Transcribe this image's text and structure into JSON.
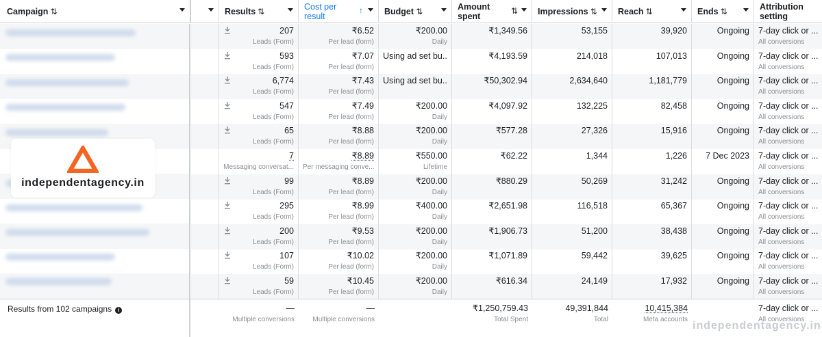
{
  "colors": {
    "accent": "#1877f2",
    "logo": "#f26522",
    "muted": "#8a8d91",
    "row_alt": "#f5f6f7"
  },
  "header": {
    "campaign": "Campaign",
    "results": "Results",
    "cost_per_result": "Cost per\nresult",
    "budget": "Budget",
    "amount_spent": "Amount\nspent",
    "impressions": "Impressions",
    "reach": "Reach",
    "ends": "Ends",
    "attribution": "Attribution\nsetting",
    "sort_icon": "⇅",
    "sort_up_icon": "↑"
  },
  "logo": {
    "text": "independentagency.in"
  },
  "rows": [
    {
      "results": "207",
      "results_sub": "Leads (Form)",
      "cpr": "₹6.52",
      "cpr_sub": "Per lead (form)",
      "budget": "₹200.00",
      "budget_sub": "Daily",
      "spent": "₹1,349.56",
      "impr": "53,155",
      "reach": "39,920",
      "ends": "Ongoing",
      "attr": "7-day click or ...",
      "attr_sub": "All conversions"
    },
    {
      "results": "593",
      "results_sub": "Leads (Form)",
      "cpr": "₹7.07",
      "cpr_sub": "Per lead (form)",
      "budget": "Using ad set bu...",
      "budget_sub": "",
      "spent": "₹4,193.59",
      "impr": "214,018",
      "reach": "107,013",
      "ends": "Ongoing",
      "attr": "7-day click or ...",
      "attr_sub": "All conversions"
    },
    {
      "results": "6,774",
      "results_sub": "Leads (Form)",
      "cpr": "₹7.43",
      "cpr_sub": "Per lead (form)",
      "budget": "Using ad set bu...",
      "budget_sub": "",
      "spent": "₹50,302.94",
      "impr": "2,634,640",
      "reach": "1,181,779",
      "ends": "Ongoing",
      "attr": "7-day click or ...",
      "attr_sub": "All conversions"
    },
    {
      "results": "547",
      "results_sub": "Leads (Form)",
      "cpr": "₹7.49",
      "cpr_sub": "Per lead (form)",
      "budget": "₹200.00",
      "budget_sub": "Daily",
      "spent": "₹4,097.92",
      "impr": "132,225",
      "reach": "82,458",
      "ends": "Ongoing",
      "attr": "7-day click or ...",
      "attr_sub": "All conversions"
    },
    {
      "results": "65",
      "results_sub": "Leads (Form)",
      "cpr": "₹8.88",
      "cpr_sub": "Per lead (form)",
      "budget": "₹200.00",
      "budget_sub": "Daily",
      "spent": "₹577.28",
      "impr": "27,326",
      "reach": "15,916",
      "ends": "Ongoing",
      "attr": "7-day click or ...",
      "attr_sub": "All conversions"
    },
    {
      "results": "7",
      "results_sub": "Messaging conversat...",
      "cpr": "₹8.89",
      "cpr_sub": "Per messaging conve...",
      "budget": "₹550.00",
      "budget_sub": "Lifetime",
      "spent": "₹62.22",
      "impr": "1,344",
      "reach": "1,226",
      "ends": "7 Dec 2023",
      "attr": "7-day click or ...",
      "attr_sub": "All conversions"
    },
    {
      "results": "99",
      "results_sub": "Leads (Form)",
      "cpr": "₹8.89",
      "cpr_sub": "Per lead (form)",
      "budget": "₹200.00",
      "budget_sub": "Daily",
      "spent": "₹880.29",
      "impr": "50,269",
      "reach": "31,242",
      "ends": "Ongoing",
      "attr": "7-day click or ...",
      "attr_sub": "All conversions"
    },
    {
      "results": "295",
      "results_sub": "Leads (Form)",
      "cpr": "₹8.99",
      "cpr_sub": "Per lead (form)",
      "budget": "₹400.00",
      "budget_sub": "Daily",
      "spent": "₹2,651.98",
      "impr": "116,518",
      "reach": "65,367",
      "ends": "Ongoing",
      "attr": "7-day click or ...",
      "attr_sub": "All conversions"
    },
    {
      "results": "200",
      "results_sub": "Leads (Form)",
      "cpr": "₹9.53",
      "cpr_sub": "Per lead (form)",
      "budget": "₹200.00",
      "budget_sub": "Daily",
      "spent": "₹1,906.73",
      "impr": "51,200",
      "reach": "38,438",
      "ends": "Ongoing",
      "attr": "7-day click or ...",
      "attr_sub": "All conversions"
    },
    {
      "results": "107",
      "results_sub": "Leads (Form)",
      "cpr": "₹10.02",
      "cpr_sub": "Per lead (form)",
      "budget": "₹200.00",
      "budget_sub": "Daily",
      "spent": "₹1,071.89",
      "impr": "59,442",
      "reach": "39,625",
      "ends": "Ongoing",
      "attr": "7-day click or ...",
      "attr_sub": "All conversions"
    },
    {
      "results": "59",
      "results_sub": "Leads (Form)",
      "cpr": "₹10.45",
      "cpr_sub": "Per lead (form)",
      "budget": "₹200.00",
      "budget_sub": "Daily",
      "spent": "₹616.34",
      "impr": "24,149",
      "reach": "17,932",
      "ends": "Ongoing",
      "attr": "7-day click or ...",
      "attr_sub": "All conversions"
    }
  ],
  "footer": {
    "label": "Results from 102 campaigns",
    "info_icon": "i",
    "results": "—",
    "results_sub": "Multiple conversions",
    "cpr": "—",
    "cpr_sub": "Multiple conversions",
    "spent": "₹1,250,759.43",
    "spent_sub": "Total Spent",
    "impr": "49,391,844",
    "impr_sub": "Total",
    "reach": "10,415,384",
    "reach_sub": "Meta accounts",
    "attr": "7-day click or ...",
    "attr_sub": "All conversions"
  },
  "watermark": "independentagency.in"
}
